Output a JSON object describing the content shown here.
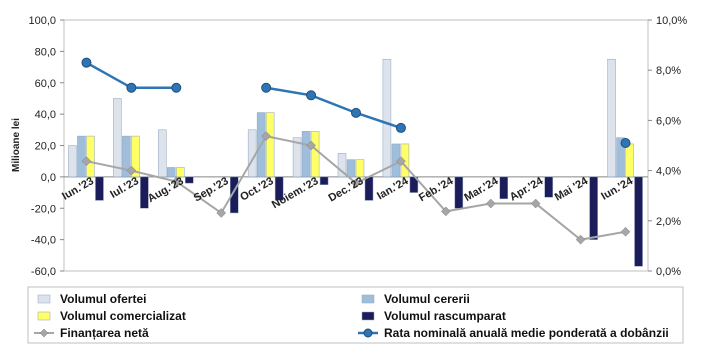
{
  "chart_data": {
    "type": "bar",
    "categories": [
      "Iun.'23",
      "Iul.'23",
      "Aug.'23",
      "Sep.'23",
      "Oct.'23",
      "Noiem.'23",
      "Dec.'23",
      "Ian.'24",
      "Feb.'24",
      "Mar.'24",
      "Apr.'24",
      "Mai '24",
      "Iun.'24"
    ],
    "ylabel": "Milioane lei",
    "ylim": [
      -60,
      100
    ],
    "yticks": [
      "-60,0",
      "-40,0",
      "-20,0",
      "0,0",
      "20,0",
      "40,0",
      "60,0",
      "80,0",
      "100,0"
    ],
    "y2lim": [
      0,
      10
    ],
    "y2ticks": [
      "0,0%",
      "2,0%",
      "4,0%",
      "6,0%",
      "8,0%",
      "10,0%"
    ],
    "series": [
      {
        "name": "Volumul ofertei",
        "axis": "left",
        "kind": "bar",
        "color": "#dde3ec",
        "values": [
          20,
          50,
          30,
          0,
          30,
          25,
          15,
          75,
          0,
          0,
          0,
          0,
          75
        ]
      },
      {
        "name": "Volumul cererii",
        "axis": "left",
        "kind": "bar",
        "color": "#9fbedc",
        "values": [
          26,
          26,
          6,
          0,
          41,
          29,
          11,
          21,
          0,
          0,
          0,
          0,
          25
        ]
      },
      {
        "name": "Volumul comercializat",
        "axis": "left",
        "kind": "bar",
        "color": "#ffff66",
        "values": [
          26,
          26,
          6,
          0,
          41,
          29,
          11,
          21,
          0,
          0,
          0,
          0,
          21
        ]
      },
      {
        "name": "Volumul rascumparat",
        "axis": "left",
        "kind": "bar",
        "color": "#1c1c5a",
        "values": [
          -15,
          -20,
          -4,
          -23,
          -15,
          -5,
          -15,
          -10,
          -20,
          -14,
          -13,
          -40,
          -57
        ]
      },
      {
        "name": "Finanțarea netă",
        "axis": "left",
        "kind": "line",
        "color": "#a6a6a6",
        "values": [
          10,
          4,
          -3,
          -23,
          26,
          20,
          -4,
          10,
          -22,
          -17,
          -17,
          -40,
          -35
        ]
      },
      {
        "name": "Rata nominală anuală medie ponderată a dobânzii",
        "axis": "right",
        "kind": "line",
        "color": "#2e75b6",
        "values": [
          8.3,
          7.3,
          7.3,
          null,
          7.3,
          7.0,
          6.3,
          5.7,
          null,
          null,
          null,
          null,
          5.1
        ]
      }
    ],
    "legend": "bottom",
    "grid": false
  }
}
